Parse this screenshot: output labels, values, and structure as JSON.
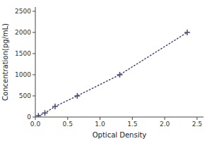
{
  "chart_data": {
    "type": "line",
    "x": [
      0.047,
      0.148,
      0.305,
      0.648,
      1.305,
      2.348
    ],
    "values": [
      31,
      94,
      250,
      500,
      1000,
      2000
    ],
    "xlabel": "Optical Density",
    "ylabel": "Concentration(pg/mL)",
    "xlim": [
      0,
      2.6
    ],
    "ylim": [
      0,
      2600
    ],
    "xticks": [
      {
        "value": 0,
        "label": "0.0"
      },
      0.5,
      {
        "value": 1,
        "label": "1.0"
      },
      1.5,
      {
        "value": 2,
        "label": "2.0"
      },
      2.5
    ],
    "yticks": [
      0,
      500,
      1000,
      1500,
      2000,
      2500
    ],
    "color": "#4a4a7a",
    "marker": "plus",
    "line_style": "dotted"
  }
}
